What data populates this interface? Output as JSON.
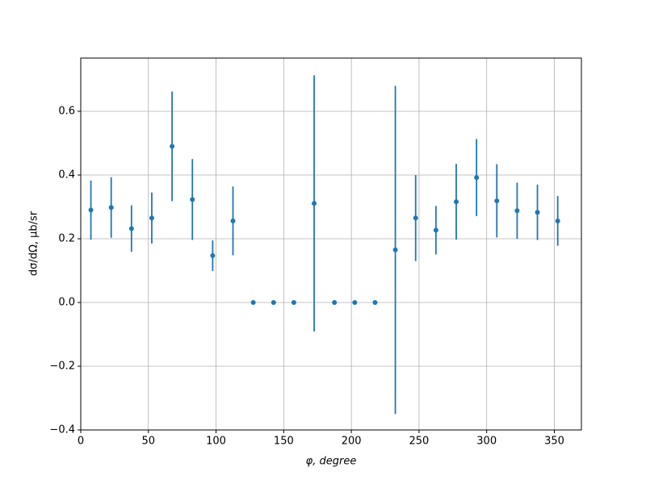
{
  "chart_data": {
    "type": "errorbar",
    "x_label": "φ, degree",
    "y_label": "dσ/dΩ, μb/sr",
    "x": [
      7.5,
      22.5,
      37.5,
      52.5,
      67.5,
      82.5,
      97.5,
      112.5,
      127.5,
      142.5,
      157.5,
      172.5,
      187.5,
      202.5,
      217.5,
      232.5,
      247.5,
      262.5,
      277.5,
      292.5,
      307.5,
      322.5,
      337.5,
      352.5
    ],
    "series": [
      {
        "color": "#1f77b4",
        "values": [
          0.29,
          0.298,
          0.232,
          0.265,
          0.49,
          0.323,
          0.147,
          0.256,
          0,
          0,
          0,
          0.311,
          0,
          0,
          0,
          0.165,
          0.265,
          0.227,
          0.316,
          0.392,
          0.319,
          0.288,
          0.283,
          0.256
        ],
        "errors": [
          0.093,
          0.095,
          0.073,
          0.08,
          0.172,
          0.127,
          0.048,
          0.108,
          0,
          0,
          0,
          0.402,
          0,
          0,
          0,
          0.515,
          0.135,
          0.076,
          0.119,
          0.121,
          0.115,
          0.088,
          0.087,
          0.078
        ]
      }
    ],
    "xlim": [
      0,
      370
    ],
    "xticks": [
      0,
      50,
      100,
      150,
      200,
      250,
      300,
      350
    ],
    "ylim": [
      -0.4,
      0.767
    ],
    "yticks": [
      {
        "value": -0.4,
        "label": "−0.4"
      },
      {
        "value": -0.2,
        "label": "−0.2"
      },
      {
        "value": 0,
        "label": "0.0"
      },
      0.2,
      0.4,
      0.6
    ],
    "grid": true
  }
}
